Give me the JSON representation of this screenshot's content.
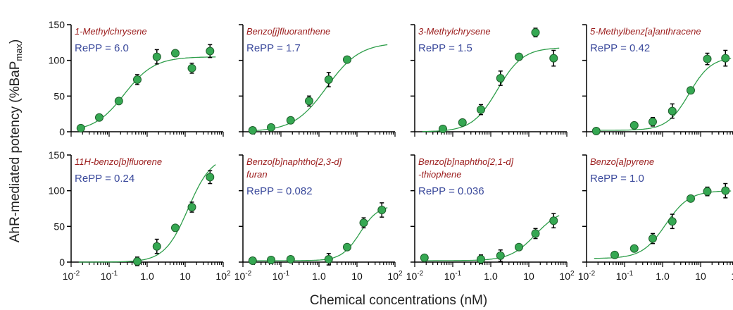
{
  "figure": {
    "ylabel": "AhR-mediated potency (%BaP",
    "ylabel_sub": "max",
    "ylabel_close": ")",
    "xlabel": "Chemical concentrations (nM)",
    "x_tick_labels": [
      {
        "base": "10",
        "exp": "-2"
      },
      {
        "base": "10",
        "exp": "-1"
      },
      {
        "base": "1.0",
        "exp": ""
      },
      {
        "base": "10",
        "exp": ""
      },
      {
        "base": "10",
        "exp": "2"
      }
    ],
    "y_tick_labels": [
      "0",
      "50",
      "100",
      "150"
    ]
  },
  "colors": {
    "title": "#9b1c1c",
    "rep": "#3b4a9c",
    "curve": "#2e9e4a",
    "point_fill": "#35a852",
    "point_stroke": "#1f5e2c",
    "axis": "#000000"
  },
  "chart_data": [
    {
      "type": "scatter",
      "title_lines": [
        "1-Methylchrysene"
      ],
      "rep": "RePP = 6.0",
      "x": [
        0.018,
        0.055,
        0.18,
        0.55,
        1.8,
        5.5,
        15,
        45
      ],
      "y": [
        5,
        20,
        43,
        73,
        105,
        110,
        89,
        113
      ],
      "err": [
        2,
        3,
        4,
        7,
        10,
        3,
        7,
        9
      ],
      "fit": {
        "bottom": 0,
        "top": 105,
        "ec50": 0.25,
        "hill": 1.1
      },
      "xlim": [
        0.01,
        100
      ],
      "ylim": [
        0,
        150
      ],
      "xscale": "log"
    },
    {
      "type": "scatter",
      "title_lines": [
        "Benzo[j]fluoranthene"
      ],
      "rep": "RePP = 1.7",
      "x": [
        0.018,
        0.055,
        0.18,
        0.55,
        1.8,
        5.5
      ],
      "y": [
        2,
        6,
        16,
        43,
        73,
        101
      ],
      "err": [
        1,
        2,
        2,
        7,
        10,
        3
      ],
      "fit": {
        "bottom": 0,
        "top": 125,
        "ec50": 1.6,
        "hill": 1.0
      },
      "xlim": [
        0.01,
        100
      ],
      "ylim": [
        0,
        150
      ],
      "xscale": "log"
    },
    {
      "type": "scatter",
      "title_lines": [
        "3-Methylchrysene"
      ],
      "rep": "RePP = 1.5",
      "x": [
        0.055,
        0.18,
        0.55,
        1.8,
        5.5,
        15,
        45
      ],
      "y": [
        4,
        13,
        31,
        75,
        105,
        139,
        103
      ],
      "err": [
        2,
        3,
        7,
        10,
        3,
        6,
        11
      ],
      "fit": {
        "bottom": 0,
        "top": 118,
        "ec50": 1.5,
        "hill": 1.3
      },
      "xlim": [
        0.01,
        100
      ],
      "ylim": [
        0,
        150
      ],
      "xscale": "log"
    },
    {
      "type": "scatter",
      "title_lines": [
        "5-Methylbenz[a]anthracene"
      ],
      "rep": "RePP = 0.42",
      "x": [
        0.018,
        0.18,
        0.55,
        1.8,
        5.5,
        15,
        45
      ],
      "y": [
        1,
        9,
        14,
        29,
        58,
        102,
        103
      ],
      "err": [
        1,
        2,
        6,
        10,
        3,
        8,
        11
      ],
      "fit": {
        "bottom": 2,
        "top": 105,
        "ec50": 5.0,
        "hill": 1.5
      },
      "xlim": [
        0.01,
        100
      ],
      "ylim": [
        0,
        150
      ],
      "xscale": "log"
    },
    {
      "type": "scatter",
      "title_lines": [
        "11H-benzo[b]fluorene"
      ],
      "rep": "RePP = 0.24",
      "x": [
        0.55,
        1.8,
        5.5,
        15,
        45
      ],
      "y": [
        1,
        22,
        48,
        77,
        119
      ],
      "err": [
        6,
        10,
        2,
        7,
        9
      ],
      "fit": {
        "bottom": 0,
        "top": 150,
        "ec50": 12,
        "hill": 1.4
      },
      "xlim": [
        0.01,
        100
      ],
      "ylim": [
        0,
        150
      ],
      "xscale": "log"
    },
    {
      "type": "scatter",
      "title_lines": [
        "Benzo[b]naphtho[2,3-d]",
        "furan"
      ],
      "rep": "RePP = 0.082",
      "x": [
        0.018,
        0.055,
        0.18,
        1.8,
        5.5,
        15,
        45
      ],
      "y": [
        2,
        3,
        4,
        4,
        21,
        55,
        73
      ],
      "err": [
        1,
        1,
        2,
        8,
        2,
        7,
        10
      ],
      "fit": {
        "bottom": 2,
        "top": 80,
        "ec50": 12,
        "hill": 1.8
      },
      "xlim": [
        0.01,
        100
      ],
      "ylim": [
        0,
        150
      ],
      "xscale": "log"
    },
    {
      "type": "scatter",
      "title_lines": [
        "Benzo[b]naphtho[2,1-d]",
        "-thiophene"
      ],
      "rep": "RePP = 0.036",
      "x": [
        0.018,
        0.55,
        1.8,
        5.5,
        15,
        45
      ],
      "y": [
        6,
        4,
        9,
        21,
        40,
        58
      ],
      "err": [
        2,
        6,
        8,
        2,
        7,
        10
      ],
      "fit": {
        "bottom": 2,
        "top": 75,
        "ec50": 15,
        "hill": 1.3
      },
      "xlim": [
        0.01,
        100
      ],
      "ylim": [
        0,
        150
      ],
      "xscale": "log"
    },
    {
      "type": "scatter",
      "title_lines": [
        "Benzo[a]pyrene"
      ],
      "rep": "RePP = 1.0",
      "x": [
        0.055,
        0.18,
        0.55,
        1.8,
        5.5,
        15,
        45
      ],
      "y": [
        10,
        19,
        33,
        57,
        89,
        99,
        100
      ],
      "err": [
        2,
        3,
        7,
        10,
        3,
        6,
        10
      ],
      "fit": {
        "bottom": 5,
        "top": 100,
        "ec50": 1.2,
        "hill": 1.4
      },
      "xlim": [
        0.01,
        100
      ],
      "ylim": [
        0,
        150
      ],
      "xscale": "log"
    }
  ]
}
